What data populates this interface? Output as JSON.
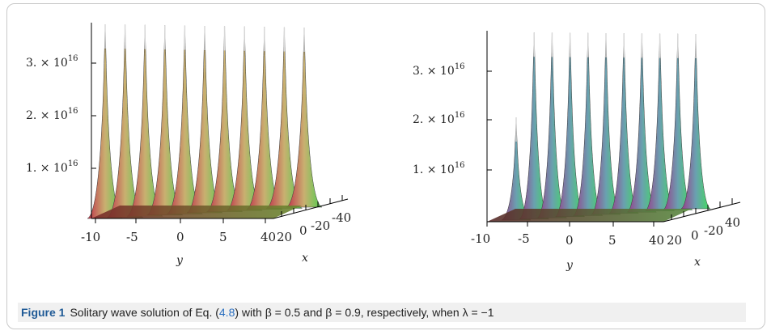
{
  "figure": {
    "label": "Figure 1",
    "caption_pre": "Solitary wave solution of Eq. (",
    "caption_ref": "4.8",
    "caption_post": ") with β = 0.5 and β = 0.9, respectively, when λ = −1"
  },
  "chart_data": [
    {
      "type": "surface",
      "beta": 0.5,
      "z_ticks": [
        "1. × 10",
        "2. × 10",
        "3. × 10"
      ],
      "z_tick_exponent": "16",
      "y_ticks": [
        "-10",
        "-5",
        "0",
        "5",
        "40"
      ],
      "x_ticks": [
        "20",
        "0",
        "-20",
        "-40"
      ],
      "xlabel": "x",
      "ylabel": "y",
      "peaks": 11,
      "colors": {
        "start": "#c0304a",
        "mid": "#c9b070",
        "end": "#4fcf4f"
      }
    },
    {
      "type": "surface",
      "beta": 0.9,
      "z_ticks": [
        "1. × 10",
        "2. × 10",
        "3. × 10"
      ],
      "z_tick_exponent": "16",
      "y_ticks": [
        "-10",
        "-5",
        "0",
        "5",
        "40"
      ],
      "x_ticks": [
        "20",
        "0",
        "-20",
        "40"
      ],
      "xlabel": "x",
      "ylabel": "y",
      "peaks": 11,
      "colors": {
        "start": "#9a3a8a",
        "mid": "#6aa0b0",
        "end": "#3ee05a"
      }
    }
  ]
}
